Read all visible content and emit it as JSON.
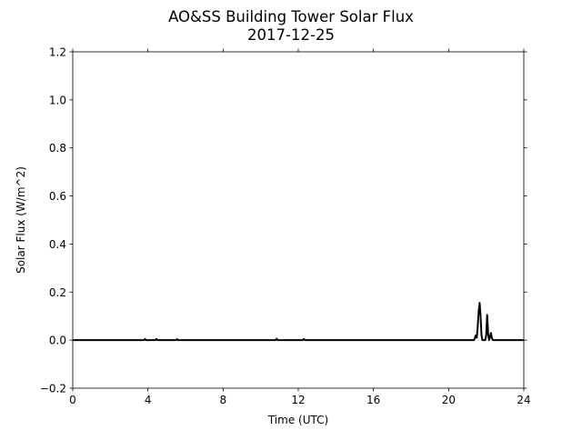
{
  "chart_data": {
    "type": "line",
    "title": "AO&SS Building Tower Solar Flux",
    "subtitle": "2017-12-25",
    "x_label": "Time (UTC)",
    "y_label": "Solar Flux (W/m^2)",
    "xlim": [
      0,
      24
    ],
    "xticks": [
      0,
      4,
      8,
      12,
      16,
      20,
      24
    ],
    "ylim": [
      -0.2,
      1.2
    ],
    "yticks": [
      {
        "value": -0.2,
        "label": "−0.2"
      },
      {
        "value": 0,
        "label": "0.0"
      },
      0.2,
      0.4,
      0.6,
      0.8,
      {
        "value": 1,
        "label": "1.0"
      },
      1.2
    ],
    "grid": false,
    "color": "#000000",
    "x": [
      0,
      3.8,
      3.85,
      3.9,
      4.4,
      4.45,
      4.5,
      5.5,
      5.55,
      5.6,
      10.8,
      10.85,
      10.9,
      12.25,
      12.3,
      12.35,
      21.35,
      21.4,
      21.45,
      21.5,
      21.55,
      21.6,
      21.65,
      21.7,
      21.75,
      21.8,
      21.85,
      21.95,
      22.0,
      22.05,
      22.1,
      22.15,
      22.2,
      22.25,
      22.3,
      22.35,
      22.45,
      24
    ],
    "values": [
      0,
      0,
      0.005,
      0,
      0,
      0.005,
      0,
      0,
      0.004,
      0,
      0,
      0.006,
      0,
      0,
      0.005,
      0,
      0,
      0.01,
      0.02,
      0.01,
      0.06,
      0.12,
      0.155,
      0.1,
      0.02,
      0,
      0,
      0,
      0.02,
      0.105,
      0.03,
      0,
      0.01,
      0.03,
      0.01,
      0,
      0,
      0
    ]
  }
}
